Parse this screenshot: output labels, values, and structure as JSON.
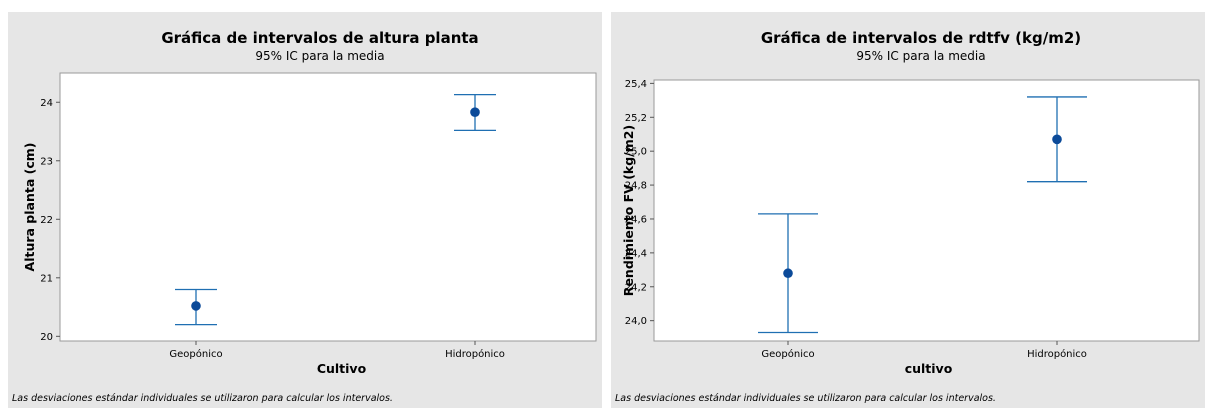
{
  "colors": {
    "series": "#1f6fb2",
    "point": "#0b4a99",
    "panel_bg": "#e6e6e6",
    "plot_bg": "#ffffff",
    "frame": "#9a9a9a"
  },
  "chart_data": [
    {
      "type": "interval",
      "title": "Gráfica de intervalos de altura planta",
      "subtitle": "95% IC para la media",
      "xlabel": "Cultivo",
      "ylabel": "Altura planta (cm)",
      "ylim": [
        19.92,
        24.5
      ],
      "yticks": [
        20,
        21,
        22,
        23,
        24
      ],
      "ytick_labels": [
        "20",
        "21",
        "22",
        "23",
        "24"
      ],
      "categories": [
        "Geopónico",
        "Hidropónico"
      ],
      "mean": [
        20.52,
        23.83
      ],
      "lower": [
        20.2,
        23.52
      ],
      "upper": [
        20.8,
        24.13
      ],
      "footnote": "Las desviaciones estándar individuales se utilizaron para calcular los intervalos."
    },
    {
      "type": "interval",
      "title": "Gráfica de intervalos de rdtfv (kg/m2)",
      "subtitle": "95% IC para la media",
      "xlabel": "cultivo",
      "ylabel": "Rendimiento FV (kg/m2)",
      "ylim": [
        23.88,
        25.42
      ],
      "yticks": [
        24.0,
        24.2,
        24.4,
        24.6,
        24.8,
        25.0,
        25.2,
        25.4
      ],
      "ytick_labels": [
        "24,0",
        "24,2",
        "24,4",
        "24,6",
        "24,8",
        "25,0",
        "25,2",
        "25,4"
      ],
      "categories": [
        "Geopónico",
        "Hidropónico"
      ],
      "mean": [
        24.28,
        25.07
      ],
      "lower": [
        23.93,
        24.82
      ],
      "upper": [
        24.63,
        25.32
      ],
      "footnote": "Las desviaciones estándar individuales se utilizaron para calcular los intervalos."
    }
  ]
}
